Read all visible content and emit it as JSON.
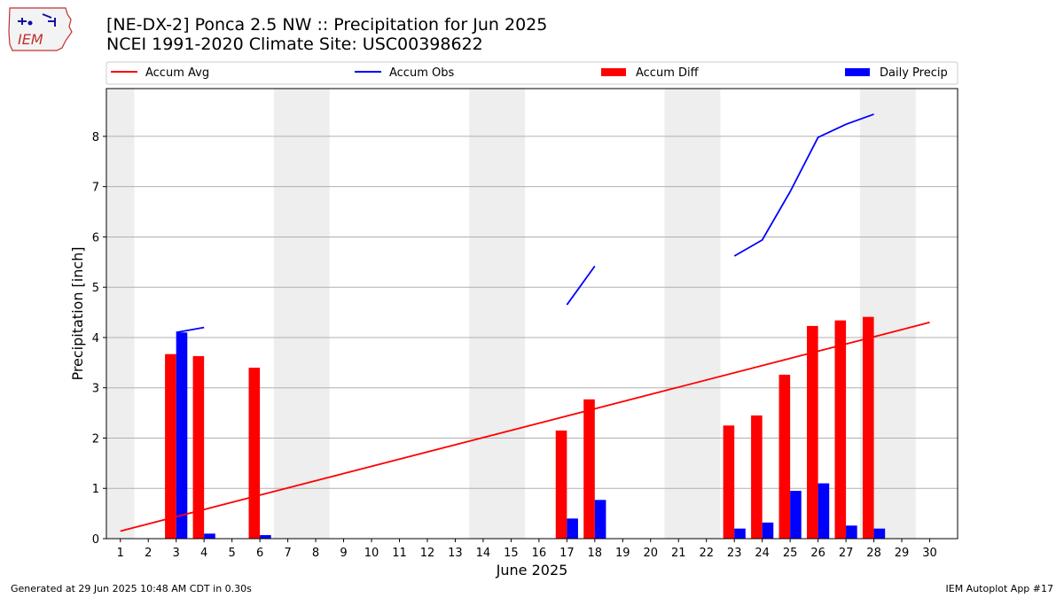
{
  "header": {
    "title_line1": "[NE-DX-2] Ponca 2.5 NW :: Precipitation for Jun 2025",
    "title_line2": "NCEI 1991-2020 Climate Site: USC00398622",
    "logo_text": "IEM"
  },
  "footer": {
    "generated": "Generated at 29 Jun 2025 10:48 AM CDT in 0.30s",
    "app": "IEM Autoplot App #17"
  },
  "chart_data": {
    "type": "bar",
    "xlabel": "June 2025",
    "ylabel": "Precipitation [inch]",
    "xlim": [
      0.5,
      31.0
    ],
    "ylim": [
      0,
      8.95
    ],
    "yticks": [
      0,
      1,
      2,
      3,
      4,
      5,
      6,
      7,
      8
    ],
    "days": [
      1,
      2,
      3,
      4,
      5,
      6,
      7,
      8,
      9,
      10,
      11,
      12,
      13,
      14,
      15,
      16,
      17,
      18,
      19,
      20,
      21,
      22,
      23,
      24,
      25,
      26,
      27,
      28,
      29,
      30
    ],
    "weekend_shading": [
      [
        0.5,
        1.5
      ],
      [
        6.5,
        8.5
      ],
      [
        13.5,
        15.5
      ],
      [
        20.5,
        22.5
      ],
      [
        27.5,
        29.5
      ]
    ],
    "grid": "horizontal",
    "legend": {
      "placement": "top",
      "entries": [
        {
          "label": "Accum Avg",
          "kind": "line",
          "color": "#ff0000"
        },
        {
          "label": "Accum Obs",
          "kind": "line",
          "color": "#0000ff"
        },
        {
          "label": "Accum Diff",
          "kind": "bar",
          "color": "#ff0000"
        },
        {
          "label": "Daily Precip",
          "kind": "bar",
          "color": "#0000ff"
        }
      ]
    },
    "series": [
      {
        "name": "Accum Avg",
        "kind": "line",
        "color": "#ff0000",
        "x": [
          1,
          30
        ],
        "y": [
          0.15,
          4.3
        ]
      },
      {
        "name": "Accum Obs",
        "kind": "line",
        "color": "#0000ff",
        "segments": [
          {
            "x": [
              3,
              4
            ],
            "y": [
              4.1,
              4.2
            ]
          },
          {
            "x": [
              17,
              18
            ],
            "y": [
              4.65,
              5.42
            ]
          },
          {
            "x": [
              23,
              24,
              25,
              26,
              27,
              28
            ],
            "y": [
              5.62,
              5.94,
              6.9,
              7.98,
              8.24,
              8.44
            ]
          }
        ]
      },
      {
        "name": "Accum Diff",
        "kind": "bar",
        "color": "#ff0000",
        "x": [
          3,
          4,
          6,
          17,
          18,
          23,
          24,
          25,
          26,
          27,
          28
        ],
        "values": [
          3.67,
          3.63,
          3.4,
          2.15,
          2.77,
          2.25,
          2.45,
          3.26,
          4.23,
          4.34,
          4.41
        ]
      },
      {
        "name": "Daily Precip",
        "kind": "bar",
        "color": "#0000ff",
        "x": [
          3,
          4,
          6,
          17,
          18,
          23,
          24,
          25,
          26,
          27,
          28
        ],
        "values": [
          4.1,
          0.1,
          0.07,
          0.4,
          0.77,
          0.2,
          0.32,
          0.95,
          1.1,
          0.26,
          0.2
        ]
      }
    ]
  }
}
